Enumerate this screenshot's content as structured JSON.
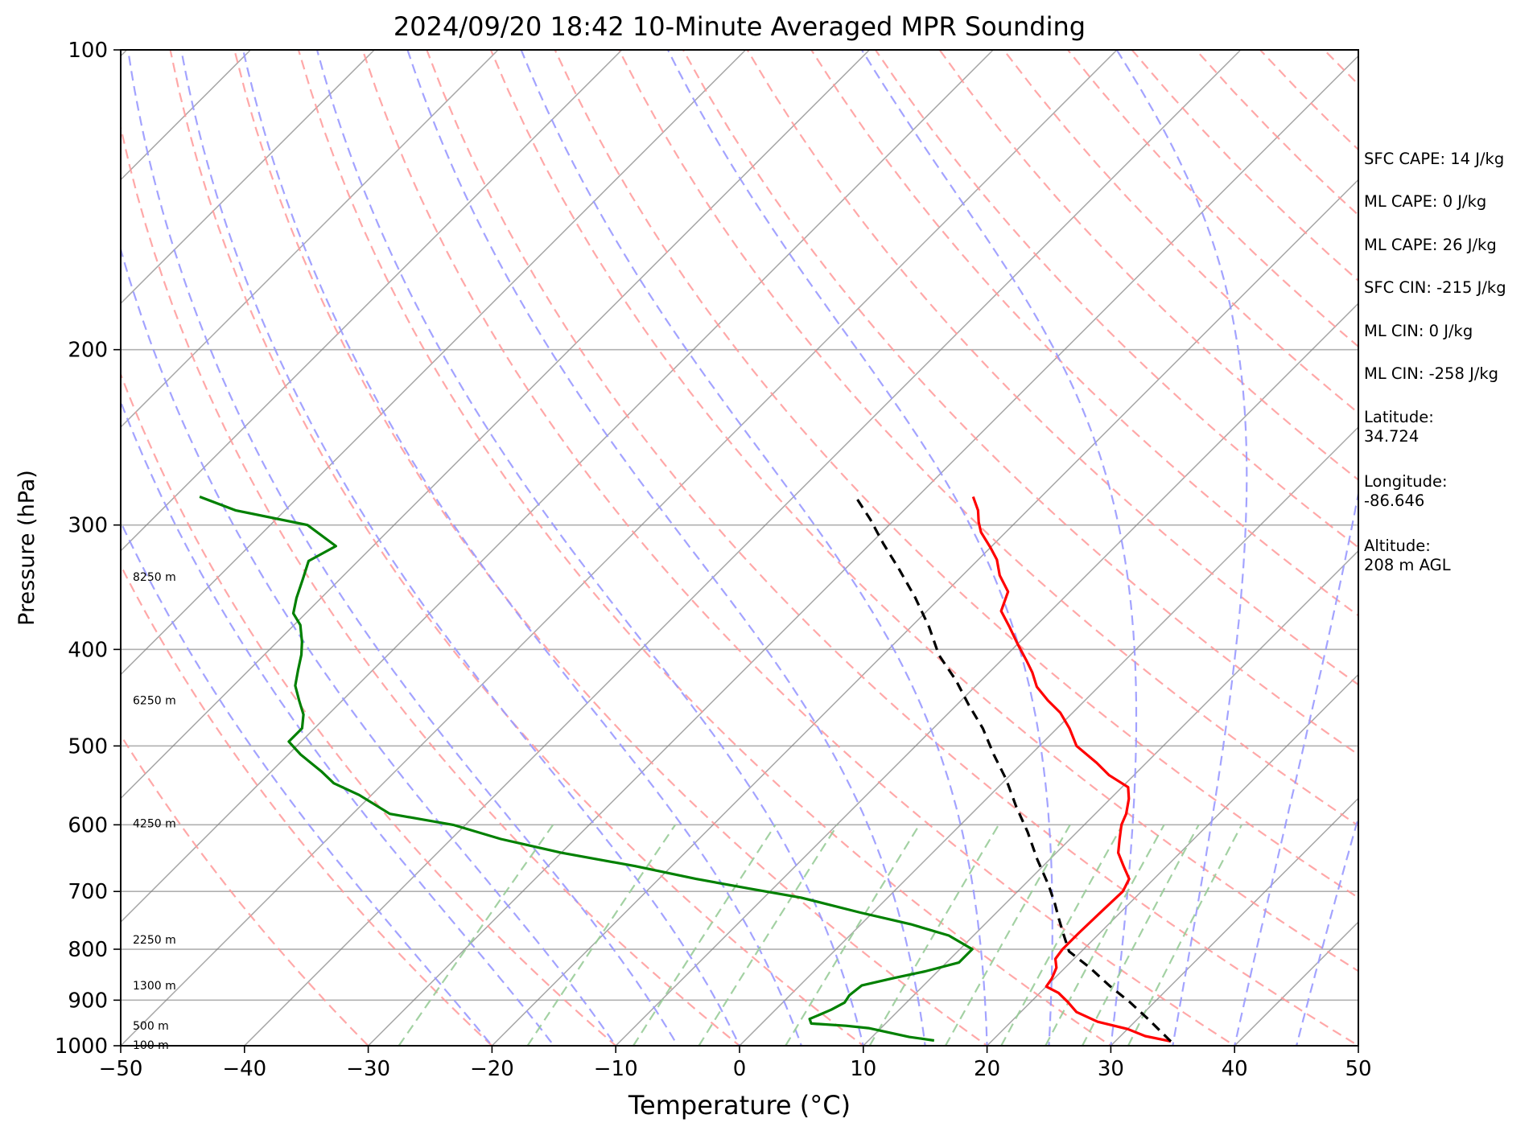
{
  "chart_data": {
    "type": "line",
    "title": "2024/09/20 18:42 10-Minute Averaged MPR Sounding",
    "xlabel": "Temperature (°C)",
    "ylabel": "Pressure (hPa)",
    "xlim": [
      -50,
      50
    ],
    "ylim": [
      1000,
      100
    ],
    "y_scale": "log",
    "x_ticks": [
      "−50",
      "−40",
      "−30",
      "−20",
      "−10",
      "0",
      "10",
      "20",
      "30",
      "40",
      "50"
    ],
    "y_ticks": [
      "100",
      "200",
      "300",
      "400",
      "500",
      "600",
      "700",
      "800",
      "900",
      "1000"
    ],
    "grid": true,
    "skew_t": true,
    "series": [
      {
        "role": "temperature",
        "color": "#ff0000",
        "points": [
          [
            34.5,
            990
          ],
          [
            32,
            978
          ],
          [
            30,
            962
          ],
          [
            27,
            946
          ],
          [
            24.5,
            925
          ],
          [
            23,
            904
          ],
          [
            21.5,
            885
          ],
          [
            20,
            872
          ],
          [
            19.8,
            856
          ],
          [
            19.3,
            835
          ],
          [
            18.5,
            818
          ],
          [
            18.3,
            800
          ],
          [
            18.3,
            770
          ],
          [
            18.4,
            730
          ],
          [
            18.5,
            700
          ],
          [
            18,
            680
          ],
          [
            16.5,
            660
          ],
          [
            15,
            640
          ],
          [
            14,
            620
          ],
          [
            13,
            600
          ],
          [
            12.5,
            585
          ],
          [
            11.5,
            565
          ],
          [
            10.5,
            550
          ],
          [
            8,
            535
          ],
          [
            6,
            520
          ],
          [
            3,
            500
          ],
          [
            1,
            480
          ],
          [
            -1,
            463
          ],
          [
            -3,
            450
          ],
          [
            -5,
            436
          ],
          [
            -6.5,
            422
          ],
          [
            -8,
            410
          ],
          [
            -10,
            395
          ],
          [
            -12,
            380
          ],
          [
            -14,
            366
          ],
          [
            -15,
            350
          ],
          [
            -17,
            337
          ],
          [
            -18.5,
            325
          ],
          [
            -20,
            316
          ],
          [
            -22,
            305
          ],
          [
            -23,
            298
          ],
          [
            -24,
            290
          ],
          [
            -25.5,
            281
          ]
        ]
      },
      {
        "role": "dewpoint",
        "color": "#008000",
        "points": [
          [
            15.3,
            988
          ],
          [
            14.5,
            985
          ],
          [
            13,
            980
          ],
          [
            11,
            970
          ],
          [
            9,
            960
          ],
          [
            7,
            955
          ],
          [
            4,
            950
          ],
          [
            3.5,
            940
          ],
          [
            4,
            930
          ],
          [
            4.5,
            920
          ],
          [
            5,
            905
          ],
          [
            4.8,
            890
          ],
          [
            5,
            870
          ],
          [
            7,
            855
          ],
          [
            9,
            842
          ],
          [
            11,
            825
          ],
          [
            11,
            815
          ],
          [
            11,
            800
          ],
          [
            8,
            775
          ],
          [
            4,
            755
          ],
          [
            -1,
            735
          ],
          [
            -7,
            710
          ],
          [
            -12,
            695
          ],
          [
            -17,
            680
          ],
          [
            -23,
            660
          ],
          [
            -30,
            640
          ],
          [
            -36,
            620
          ],
          [
            -41,
            600
          ],
          [
            -47,
            585
          ],
          [
            -51,
            560
          ],
          [
            -54,
            545
          ],
          [
            -56,
            530
          ],
          [
            -59,
            510
          ],
          [
            -61,
            495
          ],
          [
            -61,
            480
          ],
          [
            -62,
            465
          ],
          [
            -63.5,
            450
          ],
          [
            -65,
            435
          ],
          [
            -66,
            420
          ],
          [
            -67,
            405
          ],
          [
            -68,
            393
          ],
          [
            -69.5,
            378
          ],
          [
            -71,
            368
          ],
          [
            -72,
            355
          ],
          [
            -73,
            340
          ],
          [
            -74,
            326
          ],
          [
            -73,
            315
          ],
          [
            -77,
            300
          ],
          [
            -84,
            290
          ],
          [
            -88,
            281
          ]
        ]
      },
      {
        "role": "parcel",
        "color": "#000000",
        "style": "dashed",
        "points": [
          [
            34.5,
            990
          ],
          [
            31,
            942
          ],
          [
            28,
            904
          ],
          [
            25,
            870
          ],
          [
            22,
            835
          ],
          [
            19,
            804
          ],
          [
            17,
            770
          ],
          [
            15.5,
            745
          ],
          [
            14,
            720
          ],
          [
            12,
            690
          ],
          [
            9,
            650
          ],
          [
            6,
            610
          ],
          [
            3,
            575
          ],
          [
            0,
            540
          ],
          [
            -3,
            510
          ],
          [
            -6,
            480
          ],
          [
            -9,
            455
          ],
          [
            -12,
            430
          ],
          [
            -15.5,
            405
          ],
          [
            -18.5,
            380
          ],
          [
            -22,
            355
          ],
          [
            -25.5,
            333
          ],
          [
            -29,
            313
          ],
          [
            -32,
            296
          ],
          [
            -35,
            281
          ]
        ]
      }
    ],
    "height_labels": [
      {
        "text": "8250 m",
        "p": 338
      },
      {
        "text": "6250 m",
        "p": 450
      },
      {
        "text": "4250 m",
        "p": 598
      },
      {
        "text": "2250 m",
        "p": 782
      },
      {
        "text": "1300 m",
        "p": 870
      },
      {
        "text": "500 m",
        "p": 955
      },
      {
        "text": "100 m",
        "p": 998
      }
    ],
    "colors": {
      "isotherms": "#808080",
      "dry_adiabats": "#ff9999",
      "moist_adiabats": "#9999ff",
      "mixing_ratio": "#99cc99"
    }
  },
  "info": {
    "sfc_cape": "SFC CAPE: 14 J/kg",
    "ml_cape_1": "ML CAPE: 0 J/kg",
    "ml_cape_2": "ML CAPE: 26 J/kg",
    "sfc_cin": "SFC CIN: -215 J/kg",
    "ml_cin_1": "ML CIN: 0 J/kg",
    "ml_cin_2": "ML CIN: -258 J/kg",
    "latitude_label": "Latitude:",
    "latitude_value": "34.724",
    "longitude_label": "Longitude:",
    "longitude_value": "-86.646",
    "altitude_label": "Altitude:",
    "altitude_value": "208 m AGL"
  }
}
